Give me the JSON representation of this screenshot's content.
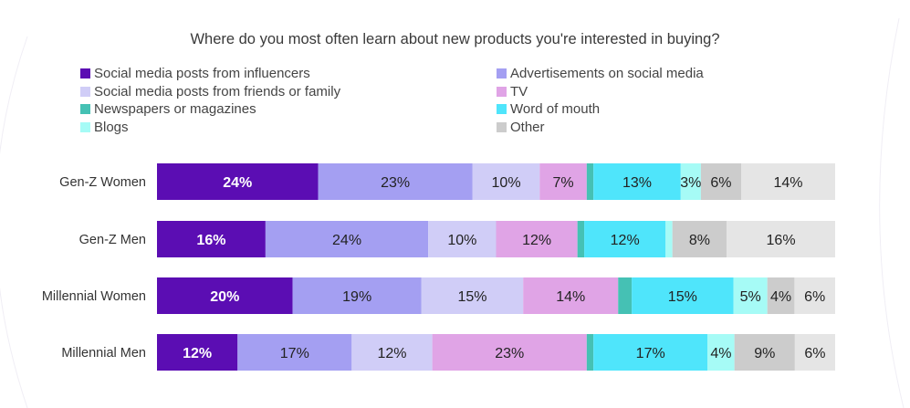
{
  "chart_data": {
    "type": "bar",
    "orientation": "horizontal",
    "stacked": true,
    "title": "Where do you most often learn about new products you're interested in buying?",
    "categories": [
      "Gen-Z Women",
      "Gen-Z Men",
      "Millennial Women",
      "Millennial Men"
    ],
    "series": [
      {
        "name": "Social media posts from influencers",
        "color": "#5b0db3",
        "values": [
          24,
          16,
          20,
          12
        ],
        "labels": [
          "24%",
          "16%",
          "20%",
          "12%"
        ],
        "label_color": "#ffffff"
      },
      {
        "name": "Advertisements on social media",
        "color": "#a49ff2",
        "values": [
          23,
          24,
          19,
          17
        ],
        "labels": [
          "23%",
          "24%",
          "19%",
          "17%"
        ]
      },
      {
        "name": "Social media posts from friends or family",
        "color": "#d0cdf7",
        "values": [
          10,
          10,
          15,
          12
        ],
        "labels": [
          "10%",
          "10%",
          "15%",
          "12%"
        ]
      },
      {
        "name": "TV",
        "color": "#e0a4e6",
        "values": [
          7,
          12,
          14,
          23
        ],
        "labels": [
          "7%",
          "12%",
          "14%",
          "23%"
        ]
      },
      {
        "name": "Newspapers or magazines",
        "color": "#45c1b4",
        "values": [
          1,
          1,
          2,
          1
        ],
        "labels": [
          "",
          "",
          "",
          ""
        ]
      },
      {
        "name": "Word of mouth",
        "color": "#4fe5fb",
        "values": [
          13,
          12,
          15,
          17
        ],
        "labels": [
          "13%",
          "12%",
          "15%",
          "17%"
        ]
      },
      {
        "name": "Blogs",
        "color": "#a6fbf6",
        "values": [
          3,
          1,
          5,
          4
        ],
        "labels": [
          "3%",
          "",
          "5%",
          "4%"
        ]
      },
      {
        "name": "Other",
        "color": "#cccccc",
        "values": [
          6,
          8,
          4,
          9
        ],
        "labels": [
          "6%",
          "8%",
          "4%",
          "9%"
        ]
      },
      {
        "color": "#e5e5e5",
        "values": [
          14,
          16,
          6,
          6
        ],
        "labels": [
          "14%",
          "16%",
          "6%",
          "6%"
        ]
      }
    ],
    "legend_placement": "top",
    "grid": false
  }
}
